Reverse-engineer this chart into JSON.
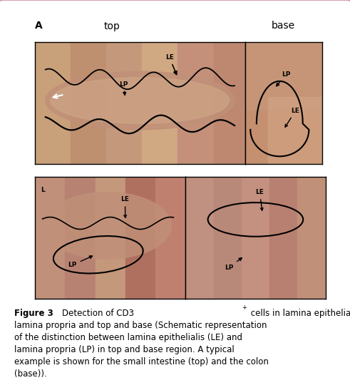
{
  "bg_color": "#ffffff",
  "border_color": "#d4a0b0",
  "fig_width": 4.91,
  "fig_height": 5.4,
  "label_A": "A",
  "label_top": "top",
  "label_base": "base",
  "caption_bold": "Figure 3",
  "caption_normal": " Detection of CD3",
  "caption_superscript": "+",
  "caption_rest_line1": " cells in lamina epithelialis and",
  "caption_line2": "lamina propria and top and base (Schematic representation",
  "caption_line3": "of the distinction between lamina epithelialis (LE) and",
  "caption_line4": "lamina propria (LP) in top and base region. A typical",
  "caption_line5": "example is shown for the small intestine (top) and the colon",
  "caption_line6": "(base)).",
  "font_size_caption": 8.5,
  "annotation_fontsize": 6.5,
  "header_fontsize": 10
}
